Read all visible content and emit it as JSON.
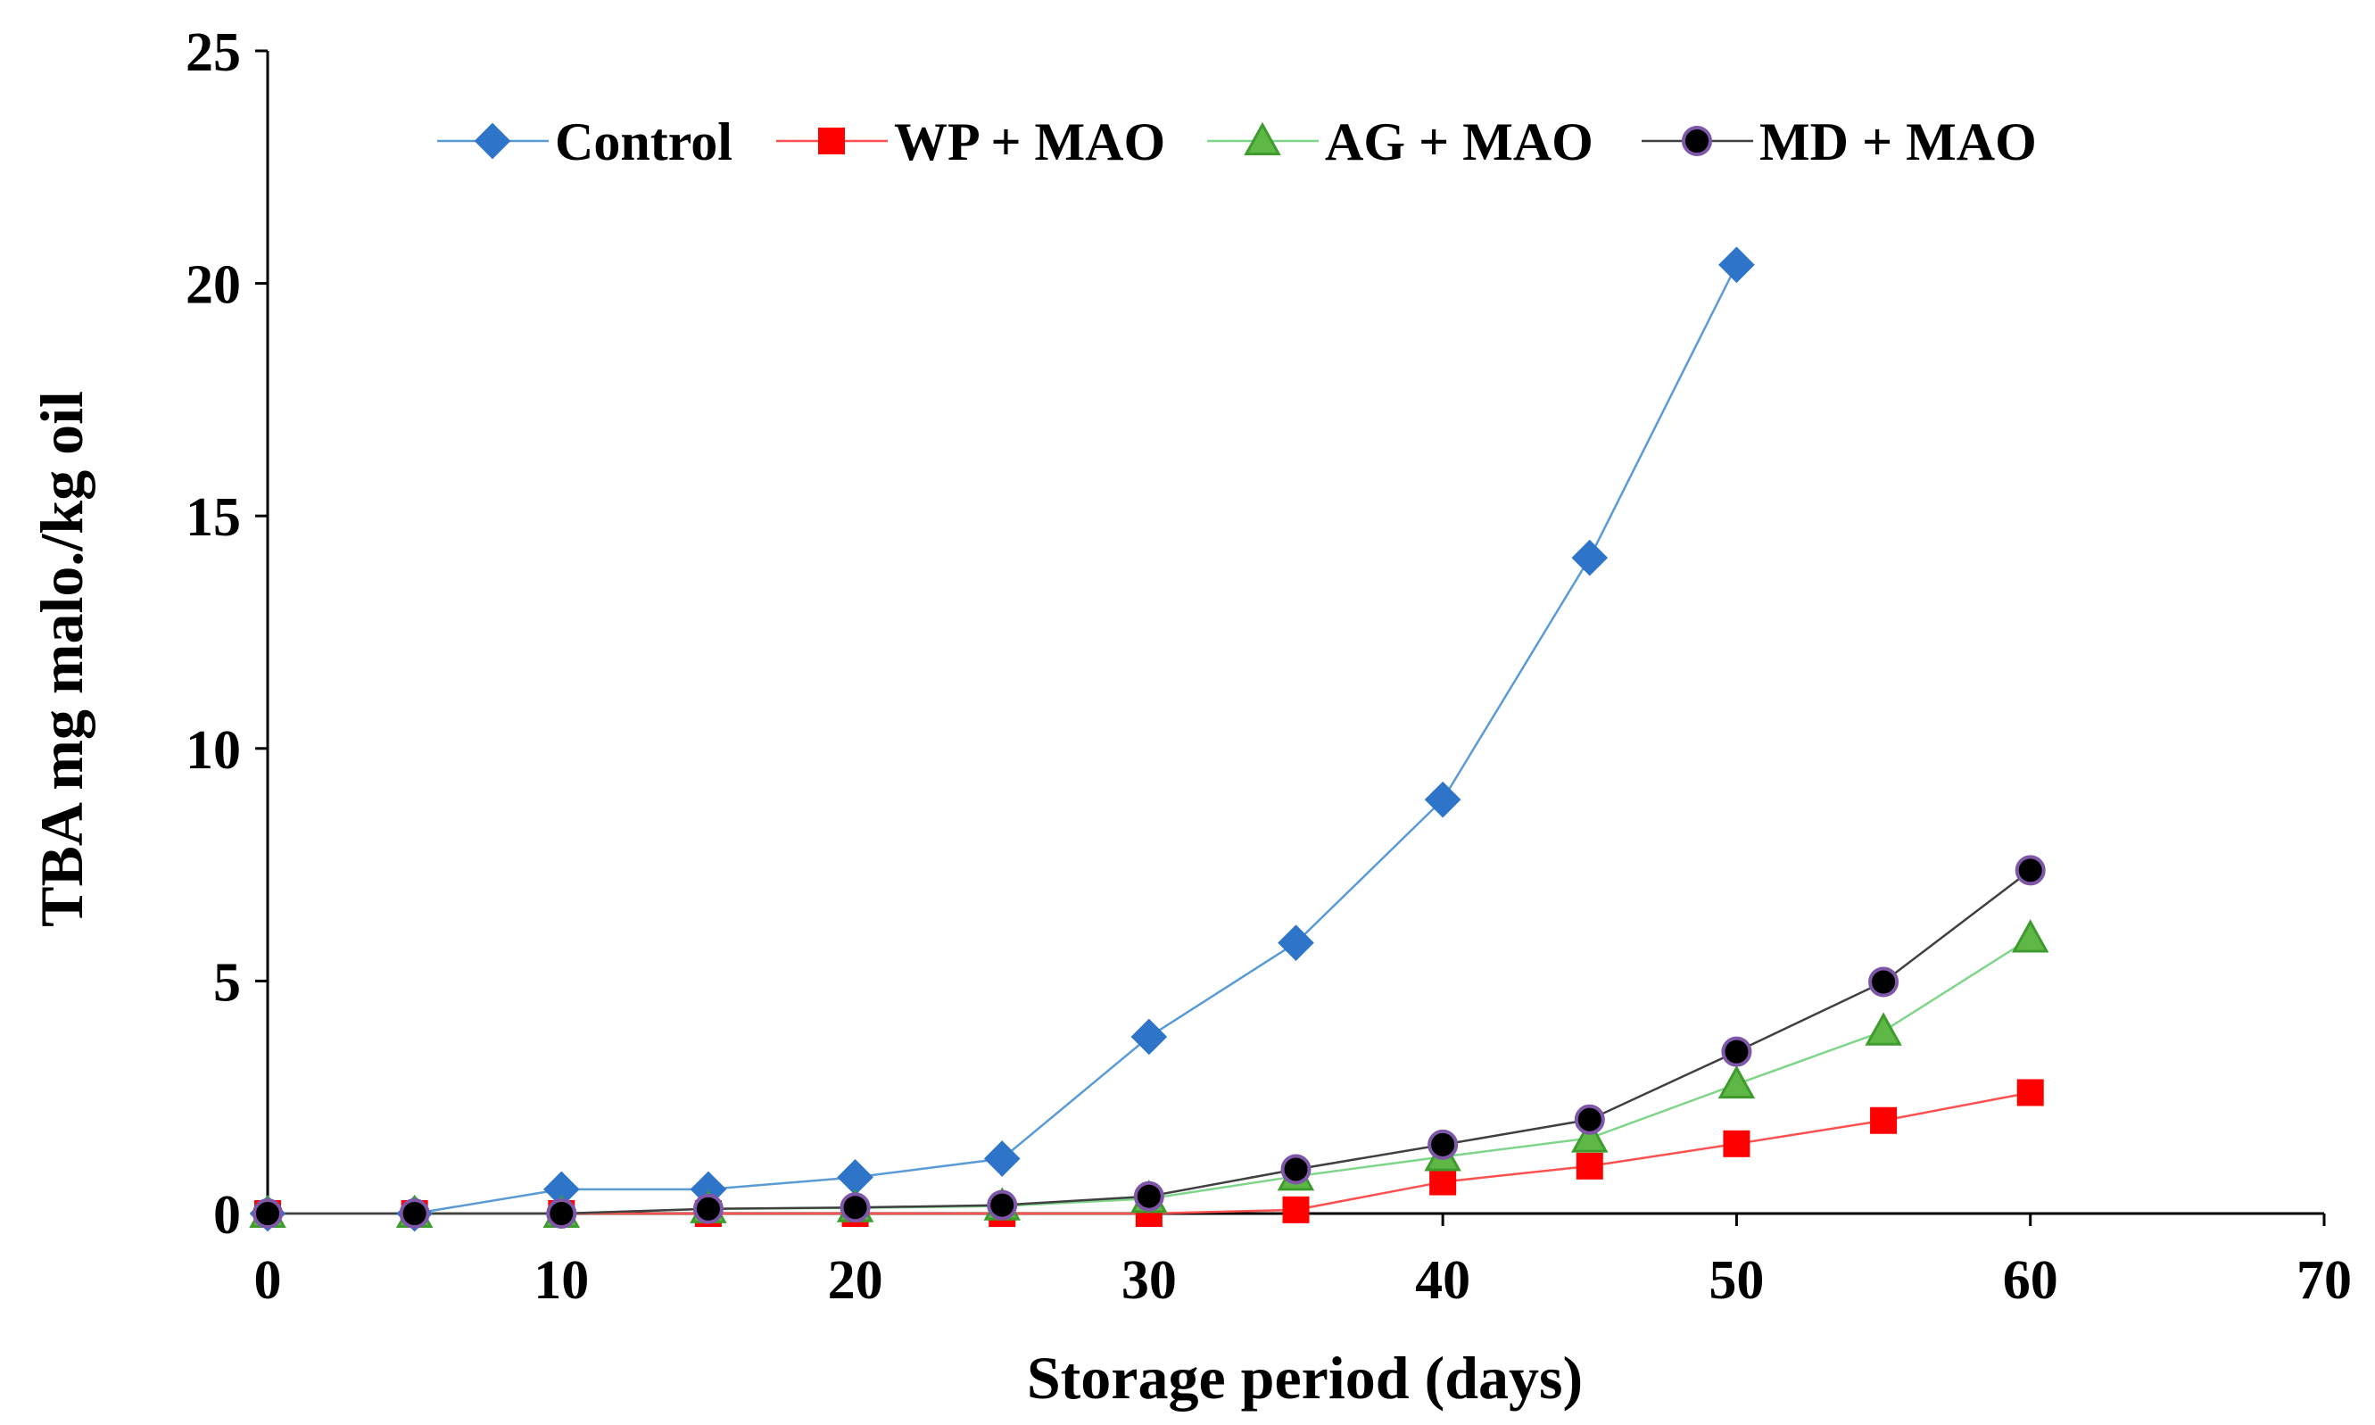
{
  "chart_data": {
    "type": "line",
    "title": "",
    "xlabel": "Storage period (days)",
    "ylabel": "TBA mg malo./kg oil",
    "xlim": [
      0,
      70
    ],
    "ylim": [
      0,
      25
    ],
    "xticks": [
      0,
      10,
      20,
      30,
      40,
      50,
      60,
      70
    ],
    "yticks": [
      0,
      5,
      10,
      15,
      20,
      25
    ],
    "xtick_labels": [
      "0",
      "10",
      "20",
      "30",
      "40",
      "50",
      "60",
      "70"
    ],
    "ytick_labels": [
      "0",
      "5",
      "10",
      "15",
      "20",
      "25"
    ],
    "grid": false,
    "legend_position": "top",
    "series": [
      {
        "name": "Control",
        "marker": "diamond",
        "line_color": "#5B9BD5",
        "marker_color": "#2E75C9",
        "marker_edge": "#2E75C9",
        "x": [
          0,
          5,
          10,
          15,
          20,
          25,
          30,
          35,
          40,
          45,
          50
        ],
        "y": [
          0,
          0,
          0.52,
          0.52,
          0.78,
          1.18,
          3.8,
          5.82,
          8.9,
          14.1,
          20.4
        ]
      },
      {
        "name": "WP + MAO",
        "marker": "square",
        "line_color": "#FF5050",
        "marker_color": "#FF0000",
        "marker_edge": "#FF0000",
        "x": [
          0,
          5,
          10,
          15,
          20,
          25,
          30,
          35,
          40,
          45,
          50,
          55,
          60
        ],
        "y": [
          0,
          0,
          0,
          0,
          0,
          0,
          0,
          0.08,
          0.68,
          1.02,
          1.5,
          2.0,
          2.6
        ]
      },
      {
        "name": "AG + MAO",
        "marker": "triangle",
        "line_color": "#7FD68B",
        "marker_color": "#5FB846",
        "marker_edge": "#3E9B2E",
        "x": [
          0,
          5,
          10,
          15,
          20,
          25,
          30,
          35,
          40,
          45,
          50,
          55,
          60
        ],
        "y": [
          0,
          0,
          0,
          0.1,
          0.12,
          0.16,
          0.32,
          0.8,
          1.22,
          1.62,
          2.78,
          3.92,
          5.92
        ]
      },
      {
        "name": "MD + MAO",
        "marker": "circle",
        "line_color": "#404040",
        "marker_color": "#000000",
        "marker_edge": "#7E57A8",
        "x": [
          0,
          5,
          10,
          15,
          20,
          25,
          30,
          35,
          40,
          45,
          50,
          55,
          60
        ],
        "y": [
          0,
          0,
          0,
          0.1,
          0.13,
          0.18,
          0.37,
          0.95,
          1.48,
          2.02,
          3.48,
          4.98,
          7.38
        ]
      }
    ]
  }
}
